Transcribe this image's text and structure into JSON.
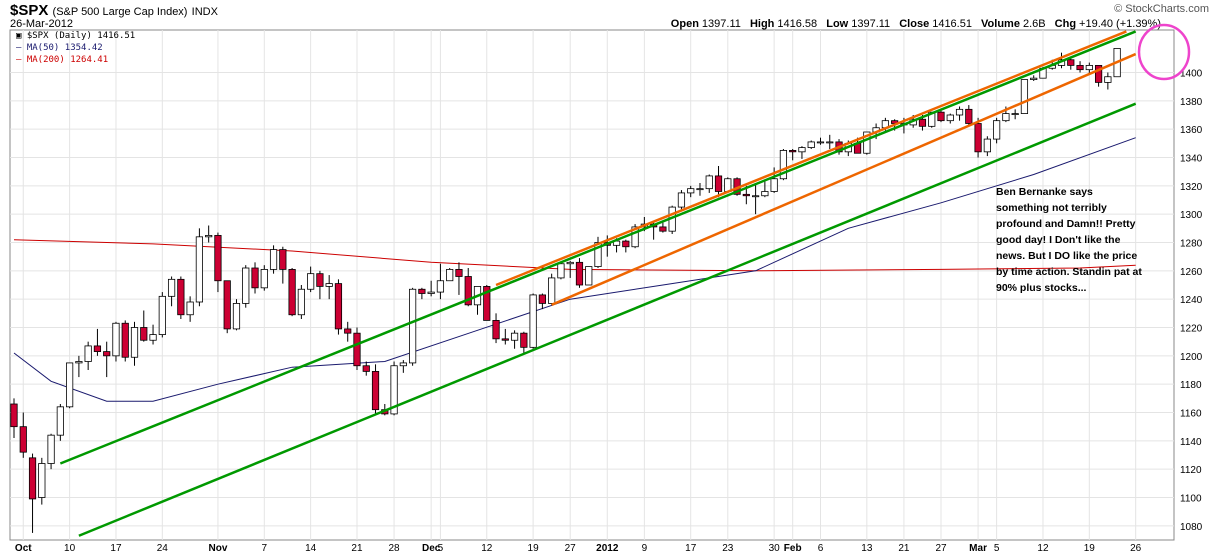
{
  "header": {
    "symbol": "$SPX",
    "name": "(S&P 500 Large Cap Index)",
    "exchange": "INDX",
    "date": "26-Mar-2012",
    "brand": "© StockCharts.com",
    "open_label": "Open",
    "open": "1397.11",
    "high_label": "High",
    "high": "1416.58",
    "low_label": "Low",
    "low": "1397.11",
    "close_label": "Close",
    "close": "1416.51",
    "volume_label": "Volume",
    "volume": "2.6B",
    "chg_label": "Chg",
    "chg": "+19.40 (+1.39%)"
  },
  "legend": {
    "price": "$SPX (Daily) 1416.51",
    "ma50": "MA(50) 1354.42",
    "ma200": "MA(200) 1264.41"
  },
  "annotation": "Ben Bernanke says something not terribly profound and Damn!! Pretty good day! I Don't like the news.  But I DO like the price by time action. Standin pat at 90% plus stocks...",
  "colors": {
    "up": "#ffffff",
    "down": "#cc0033",
    "ma50": "#1a1a6e",
    "ma200": "#cc0000",
    "channel_outer": "#009900",
    "channel_inner": "#ee6600",
    "circle": "#ee44cc"
  },
  "chart_data": {
    "type": "candlestick",
    "ylim": [
      1070,
      1430
    ],
    "y_ticks": [
      1080,
      1100,
      1120,
      1140,
      1160,
      1180,
      1200,
      1220,
      1240,
      1260,
      1280,
      1300,
      1320,
      1340,
      1360,
      1380,
      1400
    ],
    "x_labels": [
      {
        "label": "Oct",
        "i": 1
      },
      {
        "label": "10",
        "i": 6
      },
      {
        "label": "17",
        "i": 11
      },
      {
        "label": "24",
        "i": 16
      },
      {
        "label": "Nov",
        "i": 22
      },
      {
        "label": "7",
        "i": 27
      },
      {
        "label": "14",
        "i": 32
      },
      {
        "label": "21",
        "i": 37
      },
      {
        "label": "28",
        "i": 41
      },
      {
        "label": "Dec",
        "i": 45
      },
      {
        "label": "5",
        "i": 46
      },
      {
        "label": "12",
        "i": 51
      },
      {
        "label": "19",
        "i": 56
      },
      {
        "label": "27",
        "i": 60
      },
      {
        "label": "2012",
        "i": 64
      },
      {
        "label": "9",
        "i": 68
      },
      {
        "label": "17",
        "i": 73
      },
      {
        "label": "23",
        "i": 77
      },
      {
        "label": "30",
        "i": 82
      },
      {
        "label": "Feb",
        "i": 84
      },
      {
        "label": "6",
        "i": 87
      },
      {
        "label": "13",
        "i": 92
      },
      {
        "label": "21",
        "i": 96
      },
      {
        "label": "27",
        "i": 100
      },
      {
        "label": "Mar",
        "i": 104
      },
      {
        "label": "5",
        "i": 106
      },
      {
        "label": "12",
        "i": 111
      },
      {
        "label": "19",
        "i": 116
      },
      {
        "label": "26",
        "i": 121
      }
    ],
    "candles": [
      [
        1166,
        1170,
        1142,
        1150
      ],
      [
        1150,
        1160,
        1128,
        1132
      ],
      [
        1128,
        1131,
        1075,
        1099
      ],
      [
        1100,
        1128,
        1095,
        1124
      ],
      [
        1124,
        1145,
        1120,
        1144
      ],
      [
        1144,
        1166,
        1140,
        1164
      ],
      [
        1164,
        1195,
        1163,
        1195
      ],
      [
        1195,
        1200,
        1185,
        1196
      ],
      [
        1196,
        1210,
        1190,
        1207
      ],
      [
        1207,
        1219,
        1200,
        1203
      ],
      [
        1203,
        1210,
        1185,
        1200
      ],
      [
        1200,
        1224,
        1196,
        1223
      ],
      [
        1223,
        1225,
        1196,
        1199
      ],
      [
        1199,
        1224,
        1193,
        1220
      ],
      [
        1220,
        1232,
        1210,
        1211
      ],
      [
        1211,
        1222,
        1208,
        1215
      ],
      [
        1215,
        1245,
        1213,
        1242
      ],
      [
        1242,
        1256,
        1235,
        1254
      ],
      [
        1254,
        1256,
        1226,
        1229
      ],
      [
        1229,
        1242,
        1224,
        1238
      ],
      [
        1238,
        1290,
        1235,
        1284
      ],
      [
        1284,
        1292,
        1280,
        1285
      ],
      [
        1285,
        1287,
        1245,
        1253
      ],
      [
        1253,
        1253,
        1216,
        1219
      ],
      [
        1219,
        1240,
        1218,
        1237
      ],
      [
        1237,
        1264,
        1234,
        1262
      ],
      [
        1262,
        1266,
        1244,
        1248
      ],
      [
        1248,
        1264,
        1246,
        1261
      ],
      [
        1261,
        1278,
        1258,
        1275
      ],
      [
        1275,
        1277,
        1251,
        1261
      ],
      [
        1261,
        1262,
        1228,
        1229
      ],
      [
        1229,
        1250,
        1226,
        1247
      ],
      [
        1247,
        1263,
        1245,
        1258
      ],
      [
        1258,
        1260,
        1240,
        1249
      ],
      [
        1249,
        1257,
        1240,
        1251
      ],
      [
        1251,
        1254,
        1215,
        1219
      ],
      [
        1219,
        1224,
        1210,
        1216
      ],
      [
        1216,
        1220,
        1190,
        1193
      ],
      [
        1193,
        1196,
        1186,
        1189
      ],
      [
        1189,
        1194,
        1158,
        1162
      ],
      [
        1162,
        1166,
        1158,
        1159
      ],
      [
        1159,
        1196,
        1158,
        1193
      ],
      [
        1193,
        1197,
        1188,
        1195
      ],
      [
        1195,
        1248,
        1193,
        1247
      ],
      [
        1247,
        1248,
        1240,
        1244
      ],
      [
        1244,
        1253,
        1242,
        1245
      ],
      [
        1245,
        1265,
        1240,
        1253
      ],
      [
        1253,
        1262,
        1254,
        1261
      ],
      [
        1261,
        1266,
        1243,
        1256
      ],
      [
        1256,
        1262,
        1235,
        1236
      ],
      [
        1236,
        1249,
        1229,
        1249
      ],
      [
        1249,
        1250,
        1225,
        1225
      ],
      [
        1225,
        1230,
        1209,
        1212
      ],
      [
        1212,
        1219,
        1208,
        1211
      ],
      [
        1211,
        1218,
        1205,
        1216
      ],
      [
        1216,
        1217,
        1202,
        1206
      ],
      [
        1206,
        1244,
        1205,
        1243
      ],
      [
        1243,
        1244,
        1233,
        1237
      ],
      [
        1237,
        1258,
        1236,
        1255
      ],
      [
        1255,
        1265,
        1254,
        1265
      ],
      [
        1265,
        1267,
        1255,
        1266
      ],
      [
        1266,
        1269,
        1248,
        1250
      ],
      [
        1250,
        1263,
        1250,
        1263
      ],
      [
        1263,
        1284,
        1262,
        1280
      ],
      [
        1280,
        1285,
        1270,
        1278
      ],
      [
        1278,
        1283,
        1273,
        1281
      ],
      [
        1281,
        1282,
        1273,
        1277
      ],
      [
        1277,
        1293,
        1276,
        1291
      ],
      [
        1291,
        1298,
        1288,
        1293
      ],
      [
        1293,
        1295,
        1282,
        1291
      ],
      [
        1291,
        1294,
        1287,
        1288
      ],
      [
        1288,
        1306,
        1286,
        1305
      ],
      [
        1305,
        1317,
        1303,
        1315
      ],
      [
        1315,
        1320,
        1312,
        1318
      ],
      [
        1318,
        1322,
        1313,
        1318
      ],
      [
        1318,
        1328,
        1315,
        1327
      ],
      [
        1327,
        1334,
        1312,
        1316
      ],
      [
        1316,
        1326,
        1315,
        1325
      ],
      [
        1325,
        1326,
        1313,
        1314
      ],
      [
        1314,
        1320,
        1307,
        1313
      ],
      [
        1313,
        1322,
        1300,
        1313
      ],
      [
        1313,
        1323,
        1312,
        1316
      ],
      [
        1316,
        1333,
        1315,
        1325
      ],
      [
        1325,
        1346,
        1324,
        1345
      ],
      [
        1345,
        1346,
        1338,
        1344
      ],
      [
        1344,
        1348,
        1339,
        1347
      ],
      [
        1347,
        1352,
        1346,
        1351
      ],
      [
        1351,
        1354,
        1349,
        1351
      ],
      [
        1351,
        1356,
        1346,
        1351
      ],
      [
        1351,
        1353,
        1342,
        1344
      ],
      [
        1344,
        1352,
        1341,
        1350
      ],
      [
        1350,
        1354,
        1344,
        1343
      ],
      [
        1343,
        1358,
        1342,
        1358
      ],
      [
        1358,
        1364,
        1353,
        1361
      ],
      [
        1361,
        1368,
        1359,
        1366
      ],
      [
        1366,
        1367,
        1359,
        1364
      ],
      [
        1364,
        1368,
        1357,
        1363
      ],
      [
        1363,
        1370,
        1361,
        1367
      ],
      [
        1367,
        1370,
        1359,
        1362
      ],
      [
        1362,
        1372,
        1361,
        1372
      ],
      [
        1372,
        1374,
        1365,
        1366
      ],
      [
        1366,
        1371,
        1364,
        1370
      ],
      [
        1370,
        1376,
        1366,
        1374
      ],
      [
        1374,
        1377,
        1363,
        1364
      ],
      [
        1364,
        1368,
        1340,
        1344
      ],
      [
        1344,
        1355,
        1341,
        1353
      ],
      [
        1353,
        1368,
        1350,
        1366
      ],
      [
        1366,
        1376,
        1365,
        1371
      ],
      [
        1371,
        1374,
        1367,
        1371
      ],
      [
        1371,
        1395,
        1371,
        1395
      ],
      [
        1395,
        1398,
        1394,
        1396
      ],
      [
        1396,
        1404,
        1396,
        1403
      ],
      [
        1403,
        1409,
        1402,
        1405
      ],
      [
        1405,
        1414,
        1403,
        1409
      ],
      [
        1409,
        1410,
        1402,
        1405
      ],
      [
        1405,
        1408,
        1400,
        1402
      ],
      [
        1402,
        1407,
        1399,
        1405
      ],
      [
        1405,
        1405,
        1390,
        1393
      ],
      [
        1393,
        1400,
        1388,
        1397
      ],
      [
        1397,
        1417,
        1397,
        1417
      ]
    ],
    "ma200": [
      [
        0,
        1282
      ],
      [
        15,
        1279
      ],
      [
        30,
        1274
      ],
      [
        45,
        1266
      ],
      [
        60,
        1261
      ],
      [
        80,
        1260
      ],
      [
        100,
        1261
      ],
      [
        115,
        1262
      ],
      [
        121,
        1264
      ]
    ],
    "ma50": [
      [
        0,
        1202
      ],
      [
        4,
        1182
      ],
      [
        10,
        1168
      ],
      [
        15,
        1168
      ],
      [
        22,
        1180
      ],
      [
        30,
        1192
      ],
      [
        40,
        1196
      ],
      [
        50,
        1218
      ],
      [
        60,
        1240
      ],
      [
        70,
        1250
      ],
      [
        80,
        1260
      ],
      [
        90,
        1290
      ],
      [
        100,
        1308
      ],
      [
        110,
        1328
      ],
      [
        121,
        1354
      ]
    ],
    "trendlines": [
      {
        "kind": "outer",
        "from": [
          5,
          1124
        ],
        "to": [
          121,
          1429
        ]
      },
      {
        "kind": "outer",
        "from": [
          7,
          1073
        ],
        "to": [
          121,
          1378
        ]
      },
      {
        "kind": "inner",
        "from": [
          52,
          1250
        ],
        "to": [
          120,
          1429
        ]
      },
      {
        "kind": "inner",
        "from": [
          58,
          1236
        ],
        "to": [
          121,
          1413
        ]
      }
    ]
  }
}
